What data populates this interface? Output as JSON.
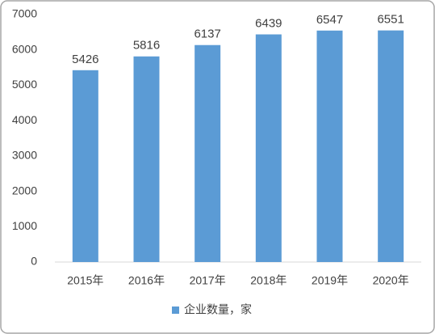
{
  "chart_data": {
    "type": "bar",
    "categories": [
      "2015年",
      "2016年",
      "2017年",
      "2018年",
      "2019年",
      "2020年"
    ],
    "series": [
      {
        "name": "企业数量，家",
        "color": "#5b9bd5",
        "values": [
          5426,
          5816,
          6137,
          6439,
          6547,
          6551
        ]
      }
    ],
    "ylim": [
      0,
      7000
    ],
    "yticks": [
      0,
      1000,
      2000,
      3000,
      4000,
      5000,
      6000,
      7000
    ],
    "grid": false,
    "legend": "bottom",
    "data_labels": true
  }
}
